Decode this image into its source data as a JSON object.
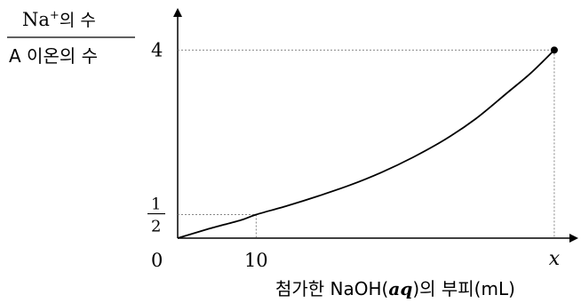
{
  "chart_data": {
    "type": "line",
    "ylabel": {
      "numerator_prefix": "Na",
      "numerator_sup": "+",
      "numerator_suffix": "의 수",
      "denominator": "A 이온의 수"
    },
    "xlabel": {
      "prefix": "첨가한 NaOH(",
      "italic": "aq",
      "suffix": ")의 부피(mL)"
    },
    "origin_label": "0",
    "x_ticks": [
      {
        "value": 10,
        "label": "10"
      },
      {
        "value": 48,
        "label": "x"
      }
    ],
    "y_ticks": [
      {
        "value": 0.5,
        "label_num": "1",
        "label_den": "2"
      },
      {
        "value": 4,
        "label": "4"
      }
    ],
    "xlim": [
      0,
      50.5
    ],
    "ylim": [
      0,
      4.8
    ],
    "x": [
      0,
      4,
      8,
      10,
      14,
      18,
      22,
      26,
      30,
      34,
      38,
      42,
      45,
      48
    ],
    "y": [
      0,
      0.2,
      0.38,
      0.5,
      0.69,
      0.9,
      1.13,
      1.4,
      1.72,
      2.09,
      2.54,
      3.09,
      3.51,
      4.0
    ],
    "end_point": {
      "x": 48,
      "y": 4
    }
  }
}
